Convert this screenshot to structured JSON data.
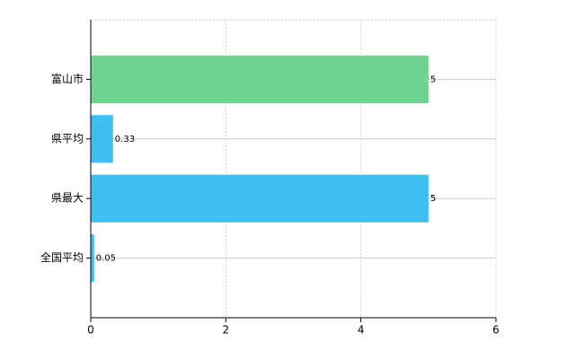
{
  "chart_data": {
    "type": "bar",
    "orientation": "horizontal",
    "categories": [
      "富山市",
      "県平均",
      "県最大",
      "全国平均"
    ],
    "values": [
      5,
      0.33,
      5,
      0.05
    ],
    "colors": [
      "#6dd38e",
      "#3dbff2",
      "#3dbff2",
      "#3dbff2"
    ],
    "xlim": [
      0,
      6
    ],
    "xticks": [
      0,
      2,
      4,
      6
    ],
    "grid": true
  }
}
